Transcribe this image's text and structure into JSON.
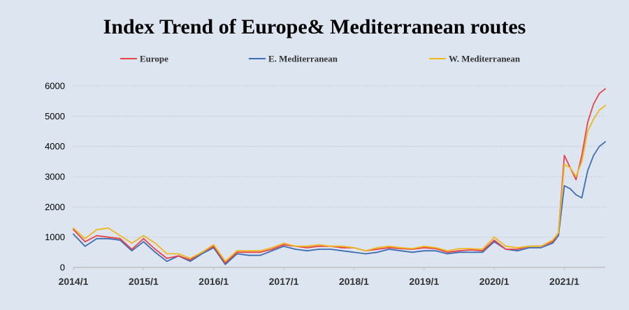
{
  "chart_data": {
    "type": "line",
    "title": "Index Trend of Europe& Mediterranean routes",
    "xlabel": "",
    "ylabel": "",
    "ylim": [
      0,
      6000
    ],
    "yticks": [
      0,
      1000,
      2000,
      3000,
      4000,
      5000,
      6000
    ],
    "xlim": [
      "2014/1",
      "2021/8"
    ],
    "xticks": [
      "2014/1",
      "2015/1",
      "2016/1",
      "2017/1",
      "2018/1",
      "2019/1",
      "2020/1",
      "2021/1"
    ],
    "grid": true,
    "legend_position": "top",
    "x": [
      "2014/1",
      "2014/3",
      "2014/5",
      "2014/7",
      "2014/9",
      "2014/11",
      "2015/1",
      "2015/3",
      "2015/5",
      "2015/7",
      "2015/9",
      "2015/11",
      "2016/1",
      "2016/3",
      "2016/5",
      "2016/7",
      "2016/9",
      "2016/11",
      "2017/1",
      "2017/3",
      "2017/5",
      "2017/7",
      "2017/9",
      "2017/11",
      "2018/1",
      "2018/3",
      "2018/5",
      "2018/7",
      "2018/9",
      "2018/11",
      "2019/1",
      "2019/3",
      "2019/5",
      "2019/7",
      "2019/9",
      "2019/11",
      "2020/1",
      "2020/3",
      "2020/5",
      "2020/7",
      "2020/9",
      "2020/11",
      "2020/12",
      "2021/1",
      "2021/2",
      "2021/3",
      "2021/4",
      "2021/5",
      "2021/6",
      "2021/7",
      "2021/8"
    ],
    "series": [
      {
        "name": "Europe",
        "color": "#e8434a",
        "values": [
          1250,
          850,
          1050,
          1000,
          950,
          600,
          950,
          600,
          300,
          380,
          250,
          500,
          700,
          150,
          500,
          500,
          500,
          600,
          750,
          700,
          650,
          700,
          700,
          650,
          650,
          550,
          600,
          650,
          620,
          600,
          650,
          620,
          500,
          550,
          580,
          550,
          900,
          600,
          600,
          700,
          700,
          850,
          1150,
          3700,
          3300,
          2900,
          3700,
          4800,
          5400,
          5750,
          5900
        ]
      },
      {
        "name": "E. Mediterranean",
        "color": "#3f6db1",
        "values": [
          1100,
          700,
          950,
          950,
          900,
          550,
          850,
          500,
          200,
          380,
          200,
          450,
          650,
          100,
          450,
          400,
          400,
          550,
          700,
          600,
          550,
          600,
          600,
          550,
          500,
          450,
          500,
          600,
          550,
          500,
          550,
          550,
          450,
          500,
          500,
          500,
          850,
          600,
          550,
          650,
          650,
          800,
          1050,
          2700,
          2600,
          2400,
          2300,
          3200,
          3700,
          4000,
          4150
        ]
      },
      {
        "name": "W. Mediterranean",
        "color": "#f0b81b",
        "values": [
          1300,
          950,
          1250,
          1300,
          1050,
          800,
          1050,
          800,
          450,
          450,
          300,
          500,
          750,
          200,
          550,
          550,
          550,
          650,
          800,
          700,
          700,
          750,
          700,
          700,
          650,
          550,
          650,
          700,
          650,
          620,
          700,
          650,
          550,
          620,
          620,
          600,
          1000,
          700,
          650,
          700,
          700,
          900,
          1150,
          3400,
          3300,
          3000,
          3500,
          4500,
          4900,
          5200,
          5350
        ]
      }
    ]
  }
}
